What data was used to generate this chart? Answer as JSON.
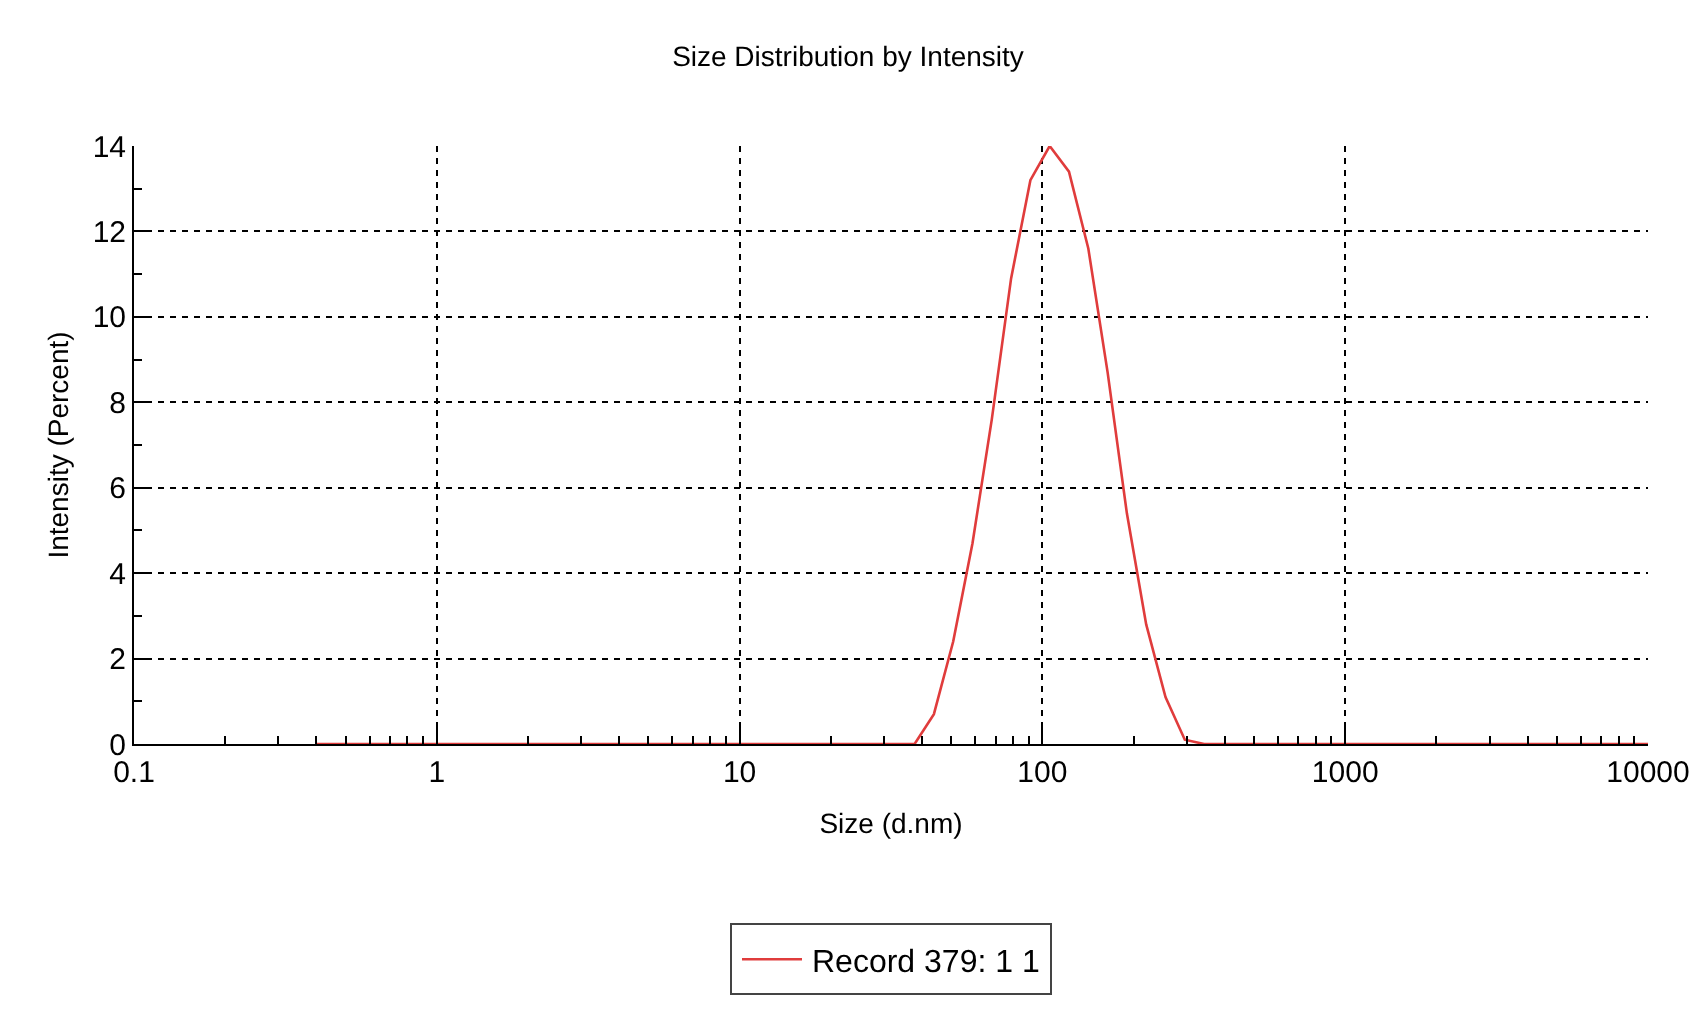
{
  "chart_data": {
    "type": "line",
    "title": "Size Distribution by Intensity",
    "xlabel": "Size (d.nm)",
    "ylabel": "Intensity (Percent)",
    "log": "x",
    "x": [
      0.4,
      37.84,
      43.82,
      50.75,
      58.77,
      68.06,
      78.82,
      91.28,
      105.7,
      122.4,
      141.8,
      164.2,
      190.1,
      220.2,
      255,
      295.3,
      342,
      10000
    ],
    "series": [
      {
        "name": "Record 379: 1 1",
        "color": "#e03c3c",
        "values": [
          0,
          0,
          0.7,
          2.4,
          4.7,
          7.6,
          10.9,
          13.2,
          14.0,
          13.4,
          11.6,
          8.7,
          5.4,
          2.8,
          1.1,
          0.1,
          0,
          0
        ]
      }
    ],
    "xlim": [
      0.1,
      10000
    ],
    "xticks": [
      0.1,
      1,
      10,
      100,
      1000,
      10000
    ],
    "ylim": [
      0,
      14
    ],
    "yticks": [
      0,
      2,
      4,
      6,
      8,
      10,
      12,
      14
    ],
    "grid": true,
    "legend": "bottom",
    "marker": "none",
    "line_style": "solid"
  }
}
